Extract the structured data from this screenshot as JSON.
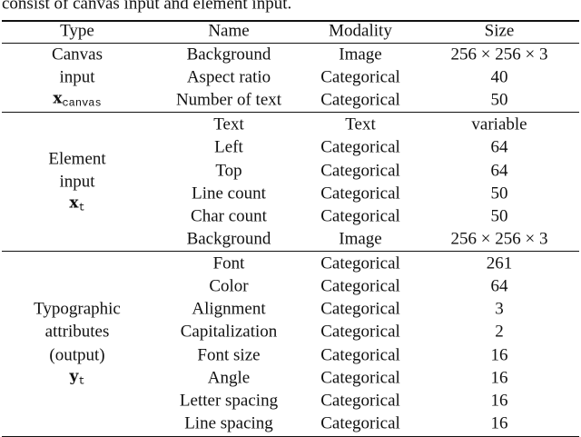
{
  "caption_fragment": "consist of canvas input and element input.",
  "table": {
    "header": [
      "Type",
      "Name",
      "Modality",
      "Size"
    ],
    "groups": [
      {
        "type_lines": [
          "Canvas",
          "input"
        ],
        "type_symbol": {
          "base": "x",
          "sub": "canvas"
        },
        "rows": [
          [
            "Background",
            "Image",
            "256 × 256 × 3"
          ],
          [
            "Aspect ratio",
            "Categorical",
            "40"
          ],
          [
            "Number of text",
            "Categorical",
            "50"
          ]
        ]
      },
      {
        "type_lines": [
          "Element",
          "input"
        ],
        "type_symbol": {
          "base": "x",
          "sub": "t"
        },
        "rows": [
          [
            "Text",
            "Text",
            "variable"
          ],
          [
            "Left",
            "Categorical",
            "64"
          ],
          [
            "Top",
            "Categorical",
            "64"
          ],
          [
            "Line count",
            "Categorical",
            "50"
          ],
          [
            "Char count",
            "Categorical",
            "50"
          ],
          [
            "Background",
            "Image",
            "256 × 256 × 3"
          ]
        ]
      },
      {
        "type_lines": [
          "Typographic",
          "attributes",
          "(output)"
        ],
        "type_symbol": {
          "base": "y",
          "sub": "t"
        },
        "rows": [
          [
            "Font",
            "Categorical",
            "261"
          ],
          [
            "Color",
            "Categorical",
            "64"
          ],
          [
            "Alignment",
            "Categorical",
            "3"
          ],
          [
            "Capitalization",
            "Categorical",
            "2"
          ],
          [
            "Font size",
            "Categorical",
            "16"
          ],
          [
            "Angle",
            "Categorical",
            "16"
          ],
          [
            "Letter spacing",
            "Categorical",
            "16"
          ],
          [
            "Line spacing",
            "Categorical",
            "16"
          ]
        ]
      }
    ]
  }
}
